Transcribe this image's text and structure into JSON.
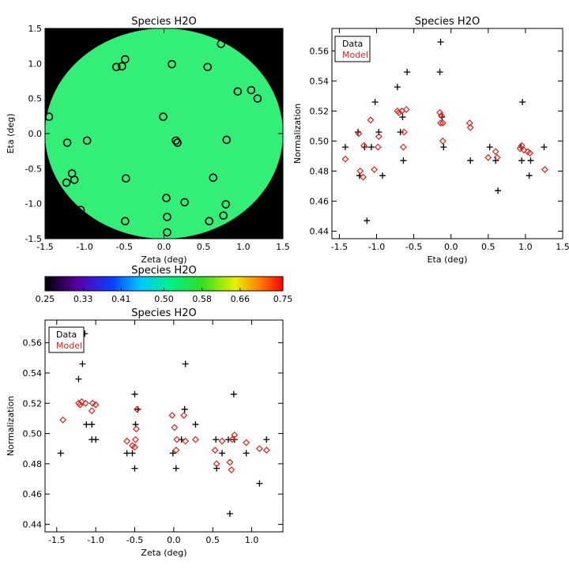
{
  "colors": {
    "data": "#000000",
    "model": "#e0201b",
    "map_fill": "#33ee77",
    "map_bg": "#000000"
  },
  "chart_data": [
    {
      "id": "map",
      "type": "scatter",
      "title": "Species H2O",
      "xlabel": "Zeta (deg)",
      "ylabel": "Eta (deg)",
      "xlim": [
        -1.5,
        1.5
      ],
      "ylim": [
        -1.5,
        1.5
      ],
      "xticks": [
        "-1.5",
        "-1.0",
        "-0.5",
        "0.0",
        "0.5",
        "1.0",
        "1.5"
      ],
      "yticks": [
        "-1.5",
        "-1.0",
        "-0.5",
        "0.0",
        "0.5",
        "1.0",
        "1.5"
      ],
      "field_radius": 1.5,
      "points": [
        [
          -1.45,
          0.24
        ],
        [
          -1.22,
          -0.13
        ],
        [
          -1.16,
          -0.57
        ],
        [
          -1.23,
          -0.7
        ],
        [
          -1.13,
          -0.66
        ],
        [
          -1.05,
          -1.09
        ],
        [
          -0.97,
          -0.1
        ],
        [
          -0.49,
          1.06
        ],
        [
          -0.53,
          0.96
        ],
        [
          -0.6,
          0.95
        ],
        [
          -0.48,
          -0.64
        ],
        [
          -0.49,
          -1.25
        ],
        [
          0.1,
          0.99
        ],
        [
          0.15,
          -0.1
        ],
        [
          0.17,
          -0.13
        ],
        [
          -0.01,
          0.24
        ],
        [
          0.03,
          -0.92
        ],
        [
          0.04,
          -1.19
        ],
        [
          0.04,
          -1.41
        ],
        [
          0.26,
          -0.98
        ],
        [
          0.55,
          0.95
        ],
        [
          0.62,
          -0.63
        ],
        [
          0.57,
          -1.25
        ],
        [
          0.72,
          1.28
        ],
        [
          0.75,
          -1.17
        ],
        [
          0.79,
          -0.09
        ],
        [
          0.78,
          -1.01
        ],
        [
          0.93,
          0.6
        ],
        [
          1.1,
          0.62
        ],
        [
          1.18,
          0.5
        ]
      ]
    },
    {
      "id": "colorbar",
      "type": "heatmap",
      "title": "Species H2O",
      "range": [
        0.25,
        0.75
      ],
      "ticks": [
        "0.25",
        "0.33",
        "0.41",
        "0.50",
        "0.58",
        "0.66",
        "0.75"
      ]
    },
    {
      "id": "eta",
      "type": "scatter",
      "title": "Species H2O",
      "xlabel": "Eta (deg)",
      "ylabel": "Normalization",
      "xlim": [
        -1.6,
        1.5
      ],
      "ylim": [
        0.435,
        0.575
      ],
      "xticks": [
        "-1.5",
        "-1.0",
        "-0.5",
        "0.0",
        "0.5",
        "1.0",
        "1.5"
      ],
      "yticks": [
        "0.44",
        "0.46",
        "0.48",
        "0.50",
        "0.52",
        "0.54",
        "0.56"
      ],
      "legend": [
        "Data",
        "Model"
      ],
      "series": [
        {
          "name": "Data",
          "marker": "plus",
          "points": [
            [
              -1.42,
              0.496
            ],
            [
              -1.25,
              0.506
            ],
            [
              -1.23,
              0.477
            ],
            [
              -1.16,
              0.496
            ],
            [
              -1.13,
              0.447
            ],
            [
              -1.07,
              0.496
            ],
            [
              -1.02,
              0.526
            ],
            [
              -0.97,
              0.506
            ],
            [
              -0.92,
              0.477
            ],
            [
              -0.72,
              0.536
            ],
            [
              -0.68,
              0.506
            ],
            [
              -0.65,
              0.516
            ],
            [
              -0.64,
              0.487
            ],
            [
              -0.59,
              0.546
            ],
            [
              -0.14,
              0.566
            ],
            [
              -0.15,
              0.546
            ],
            [
              -0.12,
              0.516
            ],
            [
              -0.1,
              0.496
            ],
            [
              0.26,
              0.487
            ],
            [
              0.52,
              0.496
            ],
            [
              0.6,
              0.487
            ],
            [
              0.63,
              0.467
            ],
            [
              0.94,
              0.496
            ],
            [
              0.96,
              0.526
            ],
            [
              0.95,
              0.487
            ],
            [
              1.05,
              0.477
            ],
            [
              1.07,
              0.487
            ],
            [
              1.25,
              0.496
            ]
          ]
        },
        {
          "name": "Model",
          "marker": "diamond",
          "points": [
            [
              -1.42,
              0.488
            ],
            [
              -1.24,
              0.505
            ],
            [
              -1.22,
              0.48
            ],
            [
              -1.18,
              0.476
            ],
            [
              -1.17,
              0.497
            ],
            [
              -1.08,
              0.514
            ],
            [
              -1.03,
              0.481
            ],
            [
              -0.98,
              0.496
            ],
            [
              -0.97,
              0.503
            ],
            [
              -0.72,
              0.52
            ],
            [
              -0.7,
              0.519
            ],
            [
              -0.66,
              0.52
            ],
            [
              -0.64,
              0.496
            ],
            [
              -0.63,
              0.506
            ],
            [
              -0.6,
              0.521
            ],
            [
              -0.15,
              0.519
            ],
            [
              -0.14,
              0.512
            ],
            [
              -0.11,
              0.512
            ],
            [
              -0.11,
              0.5
            ],
            [
              -0.13,
              0.517
            ],
            [
              0.25,
              0.512
            ],
            [
              0.26,
              0.509
            ],
            [
              0.5,
              0.489
            ],
            [
              0.6,
              0.493
            ],
            [
              0.62,
              0.489
            ],
            [
              0.93,
              0.495
            ],
            [
              0.95,
              0.497
            ],
            [
              0.98,
              0.494
            ],
            [
              1.03,
              0.493
            ],
            [
              1.06,
              0.492
            ],
            [
              1.26,
              0.481
            ]
          ]
        }
      ]
    },
    {
      "id": "zeta",
      "type": "scatter",
      "title": "Species H2O",
      "xlabel": "Zeta (deg)",
      "ylabel": "Normalization",
      "xlim": [
        -1.65,
        1.4
      ],
      "ylim": [
        0.435,
        0.575
      ],
      "xticks": [
        "-1.5",
        "-1.0",
        "-0.5",
        "0.0",
        "0.5",
        "1.0"
      ],
      "yticks": [
        "0.44",
        "0.46",
        "0.48",
        "0.50",
        "0.52",
        "0.54",
        "0.56"
      ],
      "legend": [
        "Data",
        "Model"
      ],
      "series": [
        {
          "name": "Data",
          "marker": "plus",
          "points": [
            [
              -1.45,
              0.487
            ],
            [
              -1.22,
              0.536
            ],
            [
              -1.17,
              0.546
            ],
            [
              -1.14,
              0.566
            ],
            [
              -1.12,
              0.506
            ],
            [
              -1.05,
              0.496
            ],
            [
              -1.05,
              0.506
            ],
            [
              -1.0,
              0.496
            ],
            [
              -0.6,
              0.487
            ],
            [
              -0.53,
              0.487
            ],
            [
              -0.5,
              0.526
            ],
            [
              -0.5,
              0.477
            ],
            [
              -0.49,
              0.506
            ],
            [
              -0.46,
              0.516
            ],
            [
              -0.01,
              0.487
            ],
            [
              0.03,
              0.477
            ],
            [
              0.1,
              0.496
            ],
            [
              0.14,
              0.516
            ],
            [
              0.15,
              0.546
            ],
            [
              0.28,
              0.506
            ],
            [
              0.54,
              0.496
            ],
            [
              0.55,
              0.477
            ],
            [
              0.62,
              0.487
            ],
            [
              0.7,
              0.496
            ],
            [
              0.72,
              0.447
            ],
            [
              0.77,
              0.526
            ],
            [
              0.78,
              0.496
            ],
            [
              0.93,
              0.487
            ],
            [
              1.1,
              0.467
            ],
            [
              1.19,
              0.496
            ]
          ]
        },
        {
          "name": "Model",
          "marker": "diamond",
          "points": [
            [
              -1.42,
              0.509
            ],
            [
              -1.22,
              0.52
            ],
            [
              -1.2,
              0.519
            ],
            [
              -1.18,
              0.521
            ],
            [
              -1.13,
              0.52
            ],
            [
              -1.04,
              0.52
            ],
            [
              -1.05,
              0.515
            ],
            [
              -1.0,
              0.519
            ],
            [
              -0.6,
              0.495
            ],
            [
              -0.53,
              0.492
            ],
            [
              -0.5,
              0.491
            ],
            [
              -0.49,
              0.496
            ],
            [
              -0.48,
              0.503
            ],
            [
              -0.47,
              0.516
            ],
            [
              -0.02,
              0.512
            ],
            [
              0.01,
              0.504
            ],
            [
              0.03,
              0.489
            ],
            [
              0.04,
              0.496
            ],
            [
              0.13,
              0.512
            ],
            [
              0.15,
              0.495
            ],
            [
              0.28,
              0.496
            ],
            [
              0.53,
              0.489
            ],
            [
              0.55,
              0.48
            ],
            [
              0.62,
              0.495
            ],
            [
              0.72,
              0.481
            ],
            [
              0.74,
              0.476
            ],
            [
              0.75,
              0.496
            ],
            [
              0.78,
              0.499
            ],
            [
              0.93,
              0.494
            ],
            [
              1.1,
              0.49
            ],
            [
              1.19,
              0.489
            ]
          ]
        }
      ]
    }
  ]
}
